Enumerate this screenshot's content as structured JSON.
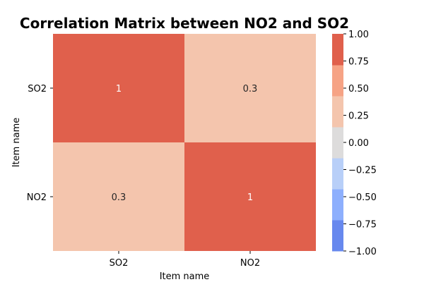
{
  "chart_data": {
    "type": "heatmap",
    "title": "Correlation Matrix between NO2 and SO2",
    "xlabel": "Item name",
    "ylabel": "Item name",
    "x_categories": [
      "SO2",
      "NO2"
    ],
    "y_categories": [
      "SO2",
      "NO2"
    ],
    "values": [
      [
        1,
        0.3
      ],
      [
        0.3,
        1
      ]
    ],
    "annotations": [
      [
        "1",
        "0.3"
      ],
      [
        "0.3",
        "1"
      ]
    ],
    "colorbar": {
      "range": [
        -1.0,
        1.0
      ],
      "ticks": [
        1.0,
        0.75,
        0.5,
        0.25,
        0.0,
        -0.25,
        -0.5,
        -0.75,
        -1.0
      ],
      "tick_labels": [
        "1.00",
        "0.75",
        "0.50",
        "0.25",
        "0.00",
        "−0.25",
        "−0.50",
        "−0.75",
        "−1.00"
      ],
      "bands": [
        {
          "from": -1.0,
          "to": -0.714,
          "color": "#6788ee"
        },
        {
          "from": -0.714,
          "to": -0.429,
          "color": "#8daffd"
        },
        {
          "from": -0.429,
          "to": -0.143,
          "color": "#b8cff8"
        },
        {
          "from": -0.143,
          "to": 0.143,
          "color": "#dddcdc"
        },
        {
          "from": 0.143,
          "to": 0.429,
          "color": "#f4c5ad"
        },
        {
          "from": 0.429,
          "to": 0.714,
          "color": "#f6a385"
        },
        {
          "from": 0.714,
          "to": 1.0,
          "color": "#e0604c"
        }
      ]
    },
    "annotation_color_dark": "#ffffff",
    "annotation_color_light": "#262626",
    "grid": false,
    "legend": "colorbar-right"
  }
}
